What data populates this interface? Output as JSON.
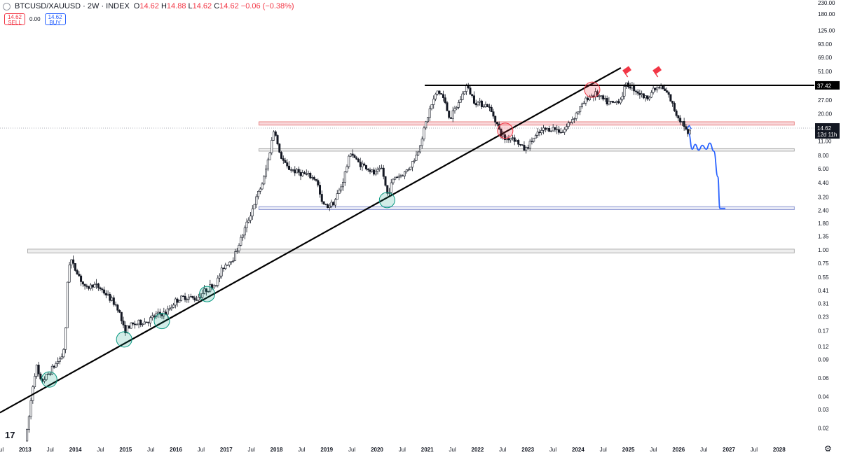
{
  "header": {
    "symbol": "BTCUSD/XAUUSD",
    "interval": "2W",
    "exchange": "INDEX",
    "title": "BTCUSD/XAUUSD · 2W · INDEX",
    "ohlc": {
      "o_label": "O",
      "o": "14.62",
      "h_label": "H",
      "h": "14.88",
      "l_label": "L",
      "l": "14.62",
      "c_label": "C",
      "c": "14.62",
      "change": "−0.06 (−0.38%)"
    }
  },
  "trade": {
    "sell_price": "14.62",
    "sell_label": "SELL",
    "spread": "0.00",
    "buy_price": "14.62",
    "buy_label": "BUY"
  },
  "colors": {
    "up": "#ffffff",
    "down": "#131722",
    "trendline": "#000000",
    "forecast": "#2962ff",
    "support_circle": "#089981",
    "resistance_circle": "#f23645",
    "price_tag": "#131722"
  },
  "icons": {
    "logo": "tradingview-logo-icon",
    "settings": "gear-icon",
    "symbol_dot": "symbol-status-icon",
    "flags": "flag-icon"
  },
  "chart_data": {
    "type": "candlestick",
    "scale": "log",
    "ylim": [
      0.015,
      230
    ],
    "xlim": [
      2012.5,
      2028.7
    ],
    "y_ticks": [
      230,
      180,
      125,
      93,
      69,
      51,
      37.42,
      27,
      20,
      15,
      11,
      8,
      6,
      4.4,
      3.2,
      2.4,
      1.8,
      1.35,
      1,
      0.75,
      0.55,
      0.41,
      0.31,
      0.23,
      0.17,
      0.12,
      0.09,
      0.06,
      0.04,
      0.03,
      0.02
    ],
    "y_tick_labels": [
      "230.00",
      "180.00",
      "125.00",
      "93.00",
      "69.00",
      "51.00",
      "37.42",
      "27.00",
      "20.00",
      "15.00",
      "11.00",
      "8.00",
      "6.00",
      "4.40",
      "3.20",
      "2.40",
      "1.80",
      "1.35",
      "1.00",
      "0.75",
      "0.55",
      "0.41",
      "0.31",
      "0.23",
      "0.17",
      "0.12",
      "0.09",
      "0.06",
      "0.04",
      "0.03",
      "0.02"
    ],
    "x_ticks": [
      {
        "t": 2012.5,
        "label": "Jul",
        "bold": false
      },
      {
        "t": 2013.0,
        "label": "2013",
        "bold": true
      },
      {
        "t": 2013.5,
        "label": "Jul",
        "bold": false
      },
      {
        "t": 2014.0,
        "label": "2014",
        "bold": true
      },
      {
        "t": 2014.5,
        "label": "Jul",
        "bold": false
      },
      {
        "t": 2015.0,
        "label": "2015",
        "bold": true
      },
      {
        "t": 2015.5,
        "label": "Jul",
        "bold": false
      },
      {
        "t": 2016.0,
        "label": "2016",
        "bold": true
      },
      {
        "t": 2016.5,
        "label": "Jul",
        "bold": false
      },
      {
        "t": 2017.0,
        "label": "2017",
        "bold": true
      },
      {
        "t": 2017.5,
        "label": "Jul",
        "bold": false
      },
      {
        "t": 2018.0,
        "label": "2018",
        "bold": true
      },
      {
        "t": 2018.5,
        "label": "Jul",
        "bold": false
      },
      {
        "t": 2019.0,
        "label": "2019",
        "bold": true
      },
      {
        "t": 2019.5,
        "label": "Jul",
        "bold": false
      },
      {
        "t": 2020.0,
        "label": "2020",
        "bold": true
      },
      {
        "t": 2020.5,
        "label": "Jul",
        "bold": false
      },
      {
        "t": 2021.0,
        "label": "2021",
        "bold": true
      },
      {
        "t": 2021.5,
        "label": "Jul",
        "bold": false
      },
      {
        "t": 2022.0,
        "label": "2022",
        "bold": true
      },
      {
        "t": 2022.5,
        "label": "Jul",
        "bold": false
      },
      {
        "t": 2023.0,
        "label": "2023",
        "bold": true
      },
      {
        "t": 2023.5,
        "label": "Jul",
        "bold": false
      },
      {
        "t": 2024.0,
        "label": "2024",
        "bold": true
      },
      {
        "t": 2024.5,
        "label": "Jul",
        "bold": false
      },
      {
        "t": 2025.0,
        "label": "2025",
        "bold": true
      },
      {
        "t": 2025.5,
        "label": "Jul",
        "bold": false
      },
      {
        "t": 2026.0,
        "label": "2026",
        "bold": true
      },
      {
        "t": 2026.5,
        "label": "Jul",
        "bold": false
      },
      {
        "t": 2027.0,
        "label": "2027",
        "bold": true
      },
      {
        "t": 2027.5,
        "label": "Jul",
        "bold": false
      },
      {
        "t": 2028.0,
        "label": "2028",
        "bold": true
      }
    ],
    "price_path": [
      [
        2013.0,
        0.015
      ],
      [
        2013.05,
        0.02
      ],
      [
        2013.15,
        0.05
      ],
      [
        2013.22,
        0.08
      ],
      [
        2013.3,
        0.055
      ],
      [
        2013.4,
        0.06
      ],
      [
        2013.55,
        0.075
      ],
      [
        2013.75,
        0.1
      ],
      [
        2013.8,
        0.15
      ],
      [
        2013.85,
        0.6
      ],
      [
        2013.88,
        0.75
      ],
      [
        2013.92,
        0.8
      ],
      [
        2013.96,
        0.7
      ],
      [
        2014.05,
        0.6
      ],
      [
        2014.2,
        0.42
      ],
      [
        2014.35,
        0.47
      ],
      [
        2014.5,
        0.43
      ],
      [
        2014.7,
        0.34
      ],
      [
        2014.85,
        0.28
      ],
      [
        2014.97,
        0.17
      ],
      [
        2015.1,
        0.19
      ],
      [
        2015.25,
        0.2
      ],
      [
        2015.45,
        0.21
      ],
      [
        2015.6,
        0.24
      ],
      [
        2015.8,
        0.25
      ],
      [
        2016.0,
        0.33
      ],
      [
        2016.2,
        0.36
      ],
      [
        2016.4,
        0.34
      ],
      [
        2016.6,
        0.42
      ],
      [
        2016.8,
        0.48
      ],
      [
        2016.95,
        0.7
      ],
      [
        2017.15,
        0.85
      ],
      [
        2017.3,
        1.3
      ],
      [
        2017.45,
        2.0
      ],
      [
        2017.55,
        2.7
      ],
      [
        2017.65,
        3.6
      ],
      [
        2017.75,
        4.8
      ],
      [
        2017.85,
        8.0
      ],
      [
        2017.96,
        15.0
      ],
      [
        2018.05,
        8.5
      ],
      [
        2018.2,
        6.2
      ],
      [
        2018.4,
        5.6
      ],
      [
        2018.6,
        5.2
      ],
      [
        2018.8,
        4.7
      ],
      [
        2018.9,
        2.8
      ],
      [
        2019.0,
        2.6
      ],
      [
        2019.15,
        2.9
      ],
      [
        2019.3,
        4.2
      ],
      [
        2019.48,
        8.8
      ],
      [
        2019.6,
        7.0
      ],
      [
        2019.8,
        6.1
      ],
      [
        2019.95,
        5.3
      ],
      [
        2020.1,
        6.0
      ],
      [
        2020.2,
        3.4
      ],
      [
        2020.35,
        5.0
      ],
      [
        2020.5,
        5.2
      ],
      [
        2020.65,
        6.2
      ],
      [
        2020.8,
        8.3
      ],
      [
        2020.95,
        15.0
      ],
      [
        2021.05,
        22.0
      ],
      [
        2021.2,
        33.0
      ],
      [
        2021.3,
        30.0
      ],
      [
        2021.45,
        18.0
      ],
      [
        2021.6,
        24.0
      ],
      [
        2021.78,
        37.0
      ],
      [
        2021.95,
        26.0
      ],
      [
        2022.2,
        24.0
      ],
      [
        2022.35,
        18.0
      ],
      [
        2022.45,
        13.0
      ],
      [
        2022.55,
        11.5
      ],
      [
        2022.7,
        12.0
      ],
      [
        2022.85,
        10.0
      ],
      [
        2022.95,
        9.0
      ],
      [
        2023.1,
        11.5
      ],
      [
        2023.3,
        14.0
      ],
      [
        2023.5,
        14.5
      ],
      [
        2023.7,
        13.5
      ],
      [
        2023.85,
        17.0
      ],
      [
        2024.05,
        23.0
      ],
      [
        2024.2,
        29.0
      ],
      [
        2024.35,
        31.0
      ],
      [
        2024.55,
        26.0
      ],
      [
        2024.7,
        25.0
      ],
      [
        2024.85,
        28.0
      ],
      [
        2024.95,
        38.0
      ],
      [
        2025.05,
        37.0
      ],
      [
        2025.2,
        32.0
      ],
      [
        2025.35,
        28.0
      ],
      [
        2025.5,
        34.0
      ],
      [
        2025.65,
        36.0
      ],
      [
        2025.8,
        30.0
      ],
      [
        2025.95,
        20.0
      ],
      [
        2026.1,
        16.0
      ],
      [
        2026.2,
        12.0
      ],
      [
        2026.25,
        14.62
      ]
    ],
    "current_price": 14.62,
    "current_price_label": "14.62",
    "countdown_label": "12d 11h",
    "horizontal_levels": [
      {
        "name": "resistance-line-37-42",
        "y": 37.42,
        "from": 2020.95,
        "to": 2028.7,
        "label": "37.42"
      }
    ],
    "zones": [
      {
        "name": "red-zone-15-17",
        "y_low": 15.6,
        "y_high": 16.8,
        "from": 2017.65,
        "to": 2028.3,
        "kind": "red"
      },
      {
        "name": "grey-zone-9",
        "y_low": 8.8,
        "y_high": 9.3,
        "from": 2017.65,
        "to": 2028.3,
        "kind": "grey"
      },
      {
        "name": "grey-zone-2-5",
        "y_low": 2.43,
        "y_high": 2.6,
        "from": 2017.65,
        "to": 2028.3,
        "kind": "blue"
      },
      {
        "name": "grey-zone-1-0",
        "y_low": 0.94,
        "y_high": 1.02,
        "from": 2013.05,
        "to": 2028.3,
        "kind": "grey"
      }
    ],
    "trendline": {
      "x0": 2012.5,
      "y0": 0.028,
      "x1": 2024.85,
      "y1": 55.0
    },
    "support_circles": [
      {
        "name": "support-circle-2013",
        "t": 2013.48,
        "y": 0.058
      },
      {
        "name": "support-circle-2014",
        "t": 2014.97,
        "y": 0.14
      },
      {
        "name": "support-circle-2015",
        "t": 2015.72,
        "y": 0.21
      },
      {
        "name": "support-circle-2016",
        "t": 2016.62,
        "y": 0.38
      },
      {
        "name": "support-circle-2020",
        "t": 2020.2,
        "y": 3.0
      }
    ],
    "resistance_circles": [
      {
        "name": "resistance-circle-2022",
        "t": 2022.55,
        "y": 13.8
      },
      {
        "name": "resistance-circle-2024",
        "t": 2024.28,
        "y": 34.0
      }
    ],
    "flags": [
      {
        "name": "flag-icon-2025-a",
        "t": 2024.98,
        "y": 52.0
      },
      {
        "name": "flag-icon-2025-b",
        "t": 2025.58,
        "y": 52.0
      }
    ],
    "forecast_path": [
      [
        2026.2,
        13.0
      ],
      [
        2026.27,
        9.2
      ],
      [
        2026.33,
        10.2
      ],
      [
        2026.4,
        9.0
      ],
      [
        2026.47,
        10.0
      ],
      [
        2026.55,
        9.2
      ],
      [
        2026.62,
        10.5
      ],
      [
        2026.7,
        8.8
      ],
      [
        2026.78,
        5.0
      ],
      [
        2026.82,
        2.5
      ],
      [
        2026.93,
        2.5
      ]
    ]
  }
}
